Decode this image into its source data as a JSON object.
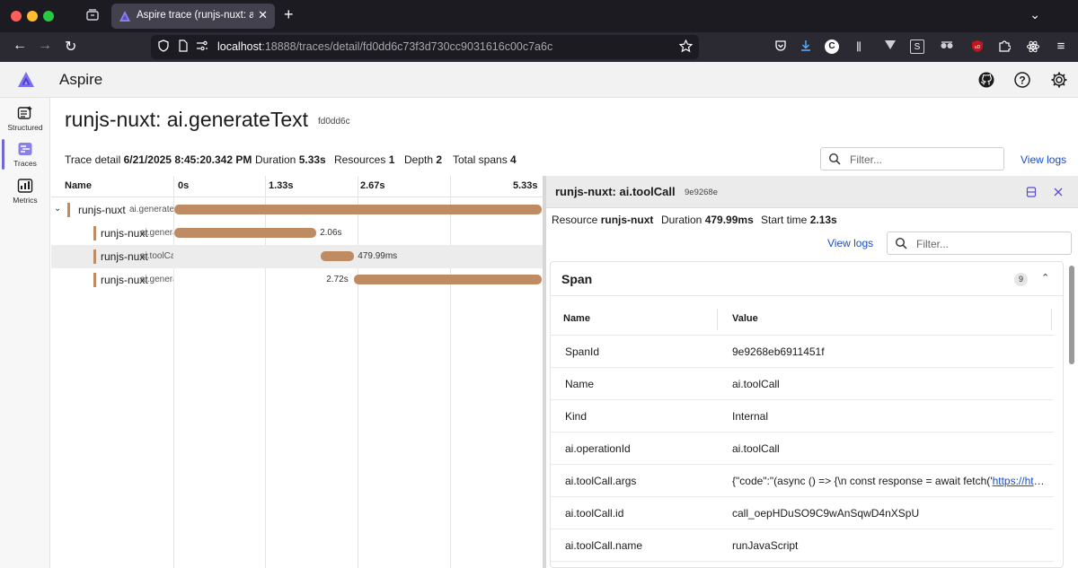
{
  "browser": {
    "tab_title": "Aspire trace (runjs-nuxt: ai.generateText)",
    "url_host": "localhost",
    "url_rest": ":18888/traces/detail/fd0dd6c73f3d730cc9031616c00c7a6c",
    "colors": {
      "tabbar": "#1c1b22",
      "navbar": "#2b2a33"
    }
  },
  "app": {
    "name": "Aspire",
    "accent": "#7367d8",
    "header_icons": [
      "github-icon",
      "help-icon",
      "settings-gear-icon"
    ]
  },
  "sidebar": {
    "items": [
      {
        "label": "Structured",
        "icon": "structured-logs-icon"
      },
      {
        "label": "Traces",
        "icon": "traces-icon",
        "active": true
      },
      {
        "label": "Metrics",
        "icon": "metrics-icon"
      }
    ]
  },
  "trace": {
    "title": "runjs-nuxt: ai.generateText",
    "id_short": "fd0dd6c",
    "summary": {
      "detail_label": "Trace detail",
      "detail_value": "6/21/2025 8:45:20.342 PM",
      "duration_label": "Duration",
      "duration_value": "5.33s",
      "resources_label": "Resources",
      "resources_value": "1",
      "depth_label": "Depth",
      "depth_value": "2",
      "spans_label": "Total spans",
      "spans_value": "4"
    },
    "filter_placeholder": "Filter...",
    "view_logs": "View logs"
  },
  "timeline": {
    "name_header": "Name",
    "ticks": [
      "0s",
      "1.33s",
      "2.67s",
      "5.33s"
    ],
    "total_seconds": 5.33,
    "bar_color": "#bf8b63",
    "rows": [
      {
        "service": "runjs-nuxt",
        "operation": "ai.generateText",
        "start": 0,
        "duration": 5.33,
        "duration_label": "",
        "expandable": true,
        "selected": false
      },
      {
        "service": "runjs-nuxt",
        "operation": "ai.generateText.doGenerate",
        "start": 0,
        "duration": 2.06,
        "duration_label": "2.06s",
        "expandable": false,
        "selected": false
      },
      {
        "service": "runjs-nuxt",
        "operation": "ai.toolCall",
        "start": 2.13,
        "duration": 0.48,
        "duration_label": "479.99ms",
        "expandable": false,
        "selected": true
      },
      {
        "service": "runjs-nuxt",
        "operation": "ai.generateText.doGenerate",
        "start": 2.61,
        "duration": 2.72,
        "duration_label": "2.72s",
        "expandable": false,
        "selected": false
      }
    ]
  },
  "detail": {
    "title": "runjs-nuxt: ai.toolCall",
    "span_id_short": "9e9268e",
    "resource_label": "Resource",
    "resource_value": "runjs-nuxt",
    "duration_label": "Duration",
    "duration_value": "479.99ms",
    "start_label": "Start time",
    "start_value": "2.13s",
    "view_logs": "View logs",
    "filter_placeholder": "Filter...",
    "span_section": {
      "title": "Span",
      "count": "9",
      "col_name": "Name",
      "col_value": "Value",
      "props": [
        {
          "name": "SpanId",
          "value": "9e9268eb6911451f"
        },
        {
          "name": "Name",
          "value": "ai.toolCall"
        },
        {
          "name": "Kind",
          "value": "Internal"
        },
        {
          "name": "ai.operationId",
          "value": "ai.toolCall"
        },
        {
          "name": "ai.toolCall.args",
          "value_prefix": "{\"code\":\"(async () => {\\n const response = await fetch('",
          "value_link": "https://httpbin.org/"
        },
        {
          "name": "ai.toolCall.id",
          "value": "call_oepHDuSO9C9wAnSqwD4nXSpU"
        },
        {
          "name": "ai.toolCall.name",
          "value": "runJavaScript"
        }
      ]
    }
  }
}
